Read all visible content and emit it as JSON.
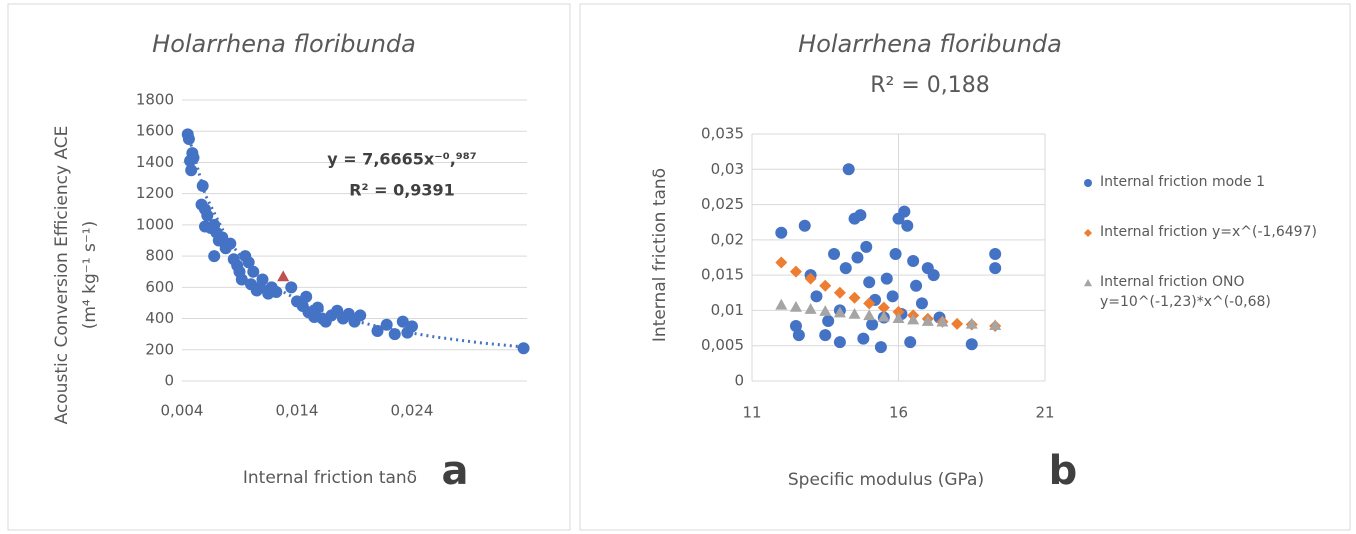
{
  "chart_data": [
    {
      "type": "scatter",
      "title": "Holarrhena floribunda",
      "xlabel": "Internal friction tanδ",
      "ylabel": [
        "Acoustic Conversion Efficiency ACE",
        "(m⁴ kg⁻¹ s⁻¹)"
      ],
      "annotations": [
        "y = 7,6665x⁻⁰,⁹⁸⁷",
        "R² = 0,9391"
      ],
      "panel_label": "a",
      "xlim": [
        0.004,
        0.034
      ],
      "xticks": [
        {
          "value": 0.004,
          "label": "0,004"
        },
        {
          "value": 0.014,
          "label": "0,014"
        },
        {
          "value": 0.024,
          "label": "0,024"
        }
      ],
      "ylim": [
        0,
        1800
      ],
      "yticks": [
        0,
        200,
        400,
        600,
        800,
        1000,
        1200,
        1400,
        1600,
        1800
      ],
      "grid": "y",
      "series": [
        {
          "color": "#4472c4",
          "marker": "circle",
          "x": [
            0.0045,
            0.0046,
            0.0047,
            0.0049,
            0.005,
            0.0048,
            0.0058,
            0.0057,
            0.006,
            0.0062,
            0.006,
            0.0065,
            0.0068,
            0.007,
            0.0072,
            0.0075,
            0.0078,
            0.0068,
            0.0082,
            0.0085,
            0.0088,
            0.009,
            0.0092,
            0.0095,
            0.0098,
            0.01,
            0.0102,
            0.0105,
            0.0108,
            0.011,
            0.0115,
            0.0118,
            0.0122,
            0.0135,
            0.014,
            0.0145,
            0.0148,
            0.015,
            0.0155,
            0.0158,
            0.0162,
            0.0165,
            0.017,
            0.0175,
            0.018,
            0.0185,
            0.019,
            0.0195,
            0.021,
            0.0218,
            0.0225,
            0.0232,
            0.0236,
            0.024,
            0.0337
          ],
          "values": [
            1580,
            1550,
            1410,
            1460,
            1430,
            1350,
            1250,
            1130,
            1100,
            1060,
            990,
            980,
            1000,
            950,
            900,
            920,
            850,
            800,
            880,
            780,
            740,
            700,
            650,
            800,
            760,
            620,
            700,
            580,
            600,
            650,
            560,
            600,
            570,
            600,
            510,
            480,
            540,
            440,
            410,
            470,
            400,
            380,
            420,
            450,
            400,
            430,
            380,
            420,
            320,
            360,
            300,
            380,
            310,
            350,
            210
          ]
        },
        {
          "color": "#c0504d",
          "marker": "triangle",
          "x": [
            0.0128
          ],
          "values": [
            670
          ]
        }
      ],
      "trendline": {
        "color": "#4472c4",
        "style": "dotted",
        "x": [
          0.0045,
          0.006,
          0.008,
          0.01,
          0.012,
          0.015,
          0.018,
          0.022,
          0.026,
          0.03,
          0.0337
        ],
        "values": [
          1588,
          1196,
          900,
          722,
          603,
          484,
          404,
          332,
          282,
          244,
          218
        ]
      }
    },
    {
      "type": "scatter",
      "title": "Holarrhena floribunda",
      "subtitle": "R² = 0,188",
      "xlabel": "Specific modulus (GPa)",
      "ylabel": [
        "Internal friction tanδ"
      ],
      "panel_label": "b",
      "xlim": [
        11,
        21
      ],
      "xticks": [
        11,
        16,
        21
      ],
      "ylim": [
        0,
        0.035
      ],
      "yticks": [
        0,
        {
          "value": 0.005,
          "label": "0,005"
        },
        {
          "value": 0.01,
          "label": "0,01"
        },
        {
          "value": 0.015,
          "label": "0,015"
        },
        {
          "value": 0.02,
          "label": "0,02"
        },
        {
          "value": 0.025,
          "label": "0,025"
        },
        {
          "value": 0.03,
          "label": "0,03"
        },
        {
          "value": 0.035,
          "label": "0,035"
        }
      ],
      "grid": "both",
      "series": [
        {
          "name": "Internal friction mode 1",
          "color": "#4472c4",
          "marker": "circle",
          "x": [
            12.0,
            12.5,
            12.6,
            12.8,
            13.0,
            13.2,
            13.5,
            13.8,
            14.0,
            14.2,
            14.3,
            14.5,
            14.6,
            14.7,
            14.8,
            14.9,
            15.0,
            15.1,
            15.2,
            15.4,
            15.6,
            15.8,
            15.9,
            16.0,
            16.1,
            16.2,
            16.3,
            16.4,
            16.5,
            16.6,
            16.8,
            17.0,
            17.2,
            17.4,
            18.5,
            19.3,
            19.3,
            14.0,
            13.6,
            15.5
          ],
          "values": [
            0.021,
            0.0078,
            0.0065,
            0.022,
            0.015,
            0.012,
            0.0065,
            0.018,
            0.0055,
            0.016,
            0.03,
            0.023,
            0.0175,
            0.0235,
            0.006,
            0.019,
            0.014,
            0.008,
            0.0115,
            0.0048,
            0.0145,
            0.012,
            0.018,
            0.023,
            0.0095,
            0.024,
            0.022,
            0.0055,
            0.017,
            0.0135,
            0.011,
            0.016,
            0.015,
            0.009,
            0.0052,
            0.018,
            0.016,
            0.01,
            0.0085,
            0.009
          ]
        },
        {
          "name": "Internal friction y=x^(-1,6497)",
          "color": "#ed7d31",
          "marker": "diamond",
          "x": [
            12.0,
            12.5,
            13.0,
            13.5,
            14.0,
            14.5,
            15.0,
            15.5,
            16.0,
            16.5,
            17.0,
            17.5,
            18.0,
            18.5,
            19.3
          ],
          "values": [
            0.0168,
            0.0155,
            0.0145,
            0.0135,
            0.0125,
            0.0118,
            0.011,
            0.0104,
            0.0098,
            0.0093,
            0.0088,
            0.0084,
            0.0081,
            0.008,
            0.0078
          ]
        },
        {
          "name": "Internal friction ONO y=10^(-1,23)*x^(-0,68)",
          "color": "#a5a5a5",
          "marker": "triangle",
          "x": [
            12.0,
            12.5,
            13.0,
            13.5,
            14.0,
            14.5,
            15.0,
            15.5,
            16.0,
            16.5,
            17.0,
            17.5,
            18.5,
            19.3
          ],
          "values": [
            0.0108,
            0.0105,
            0.0102,
            0.0099,
            0.0097,
            0.0095,
            0.0093,
            0.0091,
            0.0089,
            0.0087,
            0.0085,
            0.0084,
            0.0081,
            0.0079
          ]
        }
      ]
    }
  ]
}
